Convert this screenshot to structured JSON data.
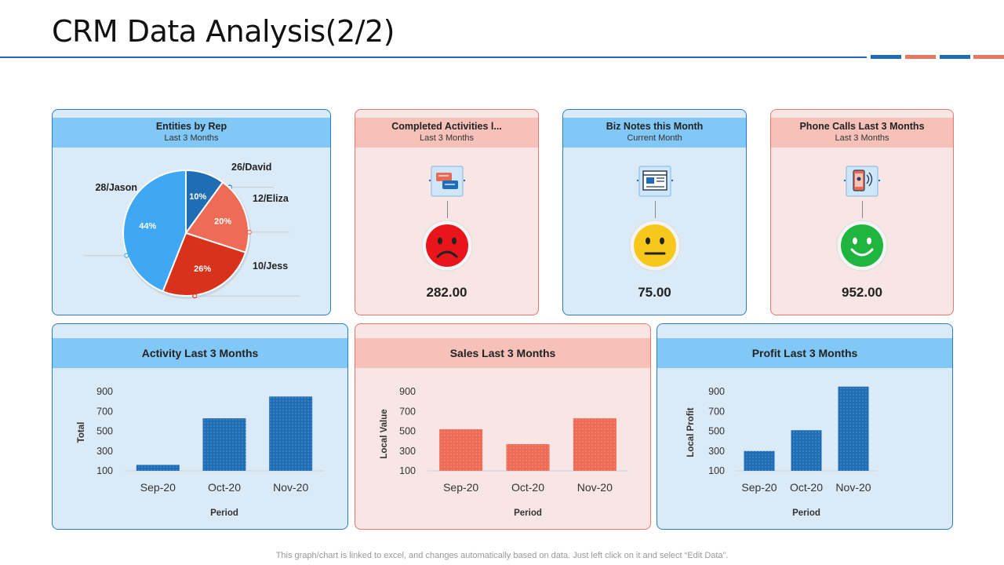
{
  "page": {
    "title": "CRM Data Analysis(2/2)",
    "footer": "This graph/chart is linked to excel,  and changes automatically based on data. Just left click on it and select “Edit Data”."
  },
  "colors": {
    "blue": "#1f6eb5",
    "red": "#e86a55",
    "light_blue": "#82c8f7",
    "light_red": "#f6c1b8"
  },
  "pie_card": {
    "title": "Entities by Rep",
    "subtitle": "Last 3 Months"
  },
  "kpis": [
    {
      "title": "Completed Activities l...",
      "subtitle": "Last 3 Months",
      "value": "282.00",
      "icon": "chat-screen-icon",
      "face": "sad"
    },
    {
      "title": "Biz Notes this Month",
      "subtitle": "Current Month",
      "value": "75.00",
      "icon": "browser-window-icon",
      "face": "neutral"
    },
    {
      "title": "Phone Calls Last 3 Months",
      "subtitle": "Last 3 Months",
      "value": "952.00",
      "icon": "phone-call-icon",
      "face": "happy"
    }
  ],
  "chart_data": [
    {
      "type": "pie",
      "title": "Entities by Rep",
      "subtitle": "Last 3 Months",
      "slices": [
        {
          "label": "26/David",
          "percent": 10,
          "percent_label": "10%",
          "color": "#1f6eb5"
        },
        {
          "label": "12/Eliza",
          "percent": 20,
          "percent_label": "20%",
          "color": "#ee6b55"
        },
        {
          "label": "10/Jess",
          "percent": 26,
          "percent_label": "26%",
          "color": "#d9321c"
        },
        {
          "label": "28/Jason",
          "percent": 44,
          "percent_label": "44%",
          "color": "#3fa8f5"
        }
      ]
    },
    {
      "type": "bar",
      "title": "Activity Last 3 Months",
      "categories": [
        "Sep-20",
        "Oct-20",
        "Nov-20"
      ],
      "values": [
        160,
        630,
        850
      ],
      "xlabel": "Period",
      "ylabel": "Total",
      "yticks": [
        100,
        300,
        500,
        700,
        900
      ],
      "ylim": [
        100,
        900
      ],
      "color": "#1f6eb5"
    },
    {
      "type": "bar",
      "title": "Sales Last 3 Months",
      "categories": [
        "Sep-20",
        "Oct-20",
        "Nov-20"
      ],
      "values": [
        520,
        370,
        630
      ],
      "xlabel": "Period",
      "ylabel": "Local Value",
      "yticks": [
        100,
        300,
        500,
        700,
        900
      ],
      "ylim": [
        100,
        900
      ],
      "color": "#ee6b55"
    },
    {
      "type": "bar",
      "title": "Profit Last 3 Months",
      "categories": [
        "Sep-20",
        "Oct-20",
        "Nov-20"
      ],
      "values": [
        300,
        510,
        950
      ],
      "xlabel": "Period",
      "ylabel": "Local Profit",
      "yticks": [
        100,
        300,
        500,
        700,
        900
      ],
      "ylim": [
        100,
        900
      ],
      "color": "#1f6eb5"
    }
  ]
}
